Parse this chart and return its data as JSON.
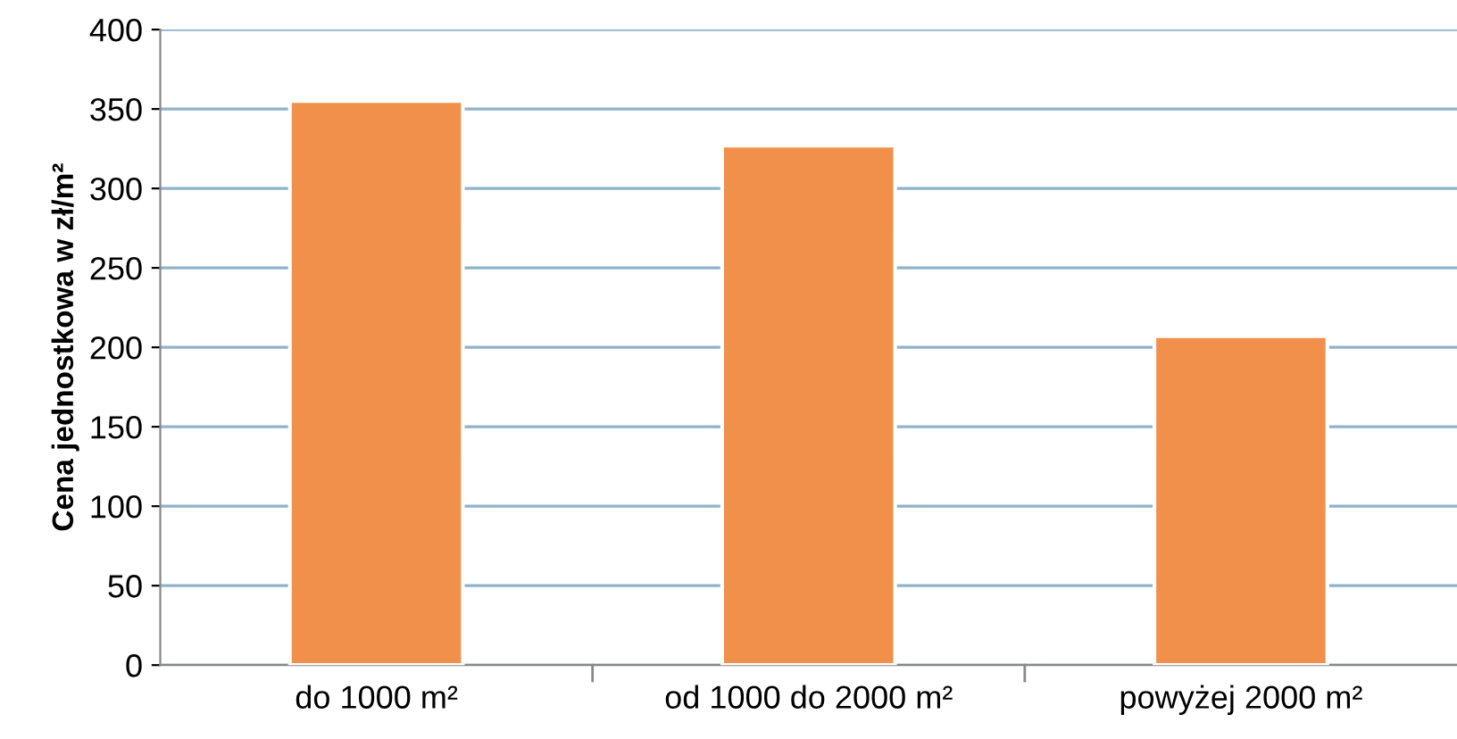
{
  "chart_data": {
    "type": "bar",
    "ylabel": "Cena jednostkowa w zł/m²",
    "categories": [
      "do 1000 m²",
      "od 1000 do 2000 m²",
      "powyżej 2000 m²"
    ],
    "values": [
      355,
      327,
      207
    ],
    "color": "#f0904a",
    "ylim": [
      0,
      400
    ],
    "yticks": [
      0,
      50,
      100,
      150,
      200,
      250,
      300,
      350,
      400
    ],
    "grid": "y",
    "legend": false
  }
}
